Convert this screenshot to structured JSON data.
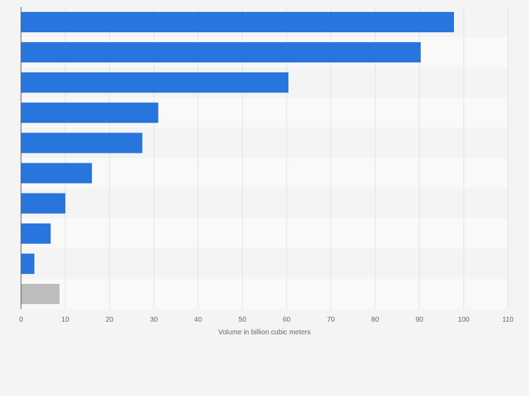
{
  "chart_data": {
    "type": "bar",
    "orientation": "horizontal",
    "title": "",
    "xlabel": "Volume in billion cubic meters",
    "ylabel": "",
    "xlim": [
      0,
      110
    ],
    "xticks": [
      0,
      10,
      20,
      30,
      40,
      50,
      60,
      70,
      80,
      90,
      100,
      110
    ],
    "grid": true,
    "legend": "none",
    "categories": [
      "",
      "",
      "",
      "",
      "",
      "",
      "",
      "",
      "",
      ""
    ],
    "values": [
      97.8,
      90.3,
      60.4,
      31.0,
      27.4,
      16.0,
      10.0,
      6.7,
      3.0,
      8.7
    ],
    "colors": {
      "bar": "#2775dd",
      "bar_other": "#bdbdbd",
      "band_light": "#f9f9f9",
      "band_dark": "#f4f4f4",
      "grid": "#e2e2e2",
      "axis": "#555555",
      "text": "#666666"
    }
  }
}
